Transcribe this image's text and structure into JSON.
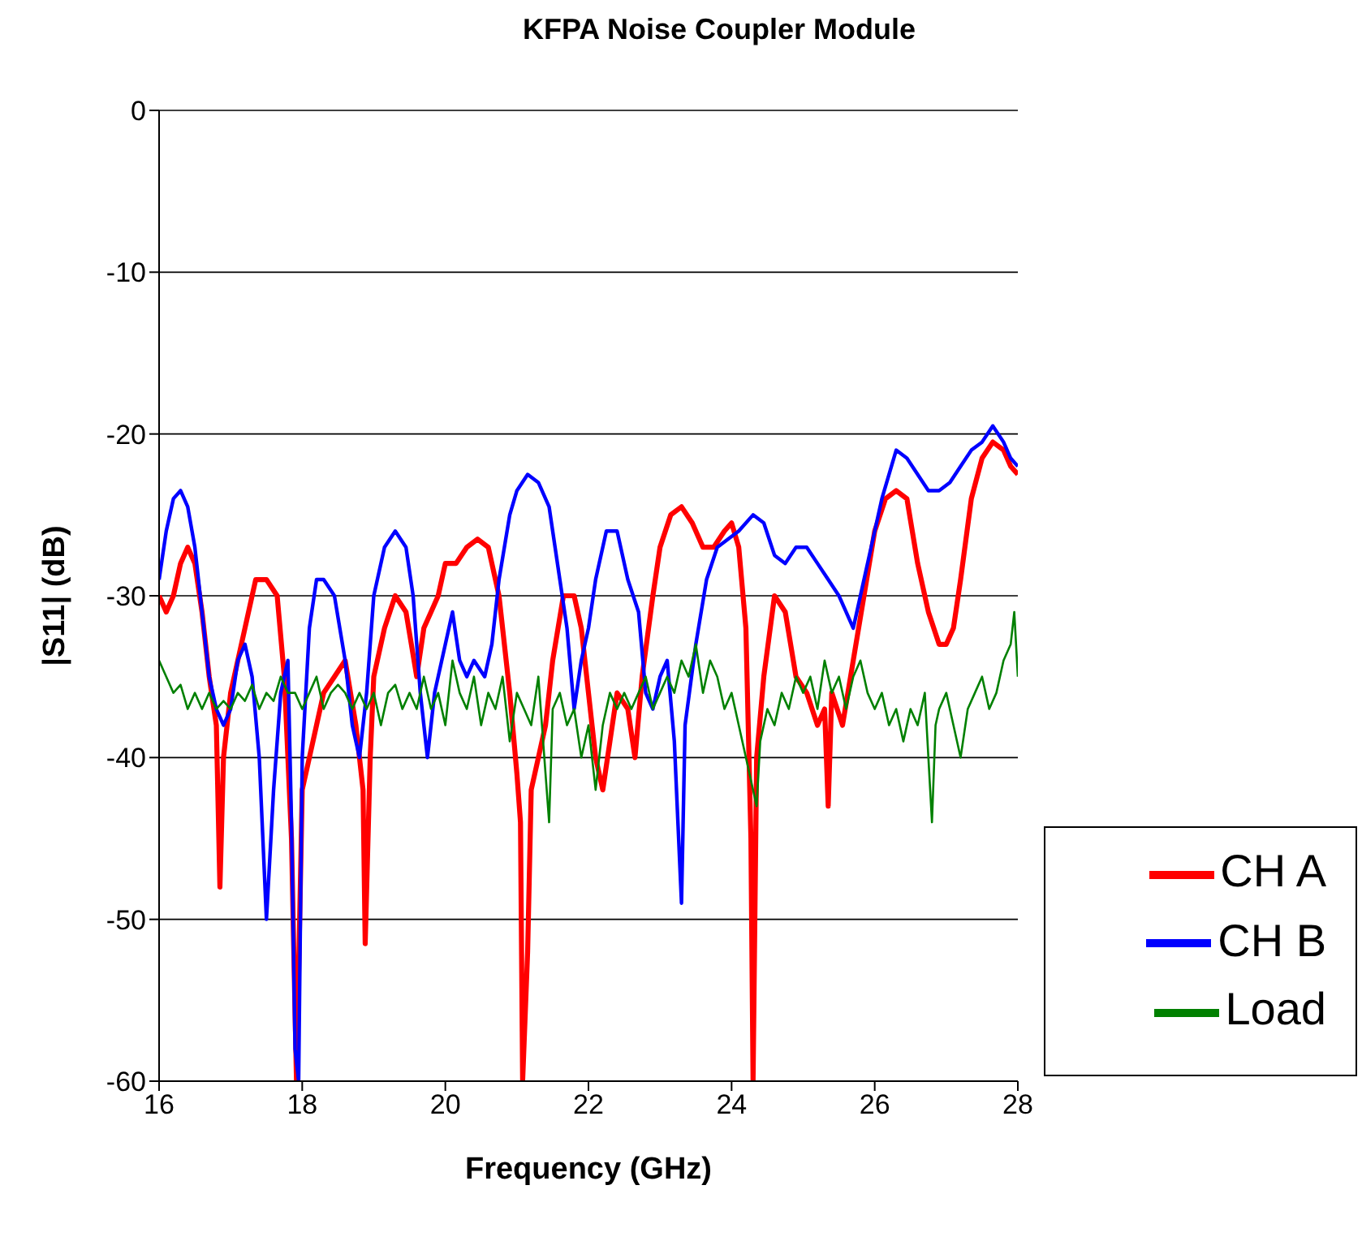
{
  "chart_data": {
    "type": "line",
    "title": "KFPA Noise Coupler Module",
    "xlabel": "Frequency (GHz)",
    "ylabel": "|S11| (dB)",
    "xlim": [
      16,
      28
    ],
    "xticks": [
      16,
      18,
      20,
      22,
      24,
      26,
      28
    ],
    "ylim": [
      -60,
      0
    ],
    "yticks": [
      -60,
      -50,
      -40,
      -30,
      -20,
      -10,
      0
    ],
    "grid": "y",
    "legend": "bottom right",
    "marker": "none",
    "line_style": "solid",
    "series": [
      {
        "name": "CH A",
        "color": "#ff0000",
        "x": [
          16.0,
          16.1,
          16.2,
          16.3,
          16.4,
          16.5,
          16.6,
          16.7,
          16.8,
          16.85,
          16.9,
          17.0,
          17.2,
          17.35,
          17.5,
          17.65,
          17.75,
          17.85,
          17.92,
          18.0,
          18.1,
          18.2,
          18.3,
          18.45,
          18.6,
          18.75,
          18.85,
          18.88,
          18.95,
          19.0,
          19.15,
          19.3,
          19.45,
          19.6,
          19.7,
          19.8,
          19.9,
          20.0,
          20.15,
          20.3,
          20.45,
          20.6,
          20.75,
          20.9,
          21.0,
          21.05,
          21.08,
          21.15,
          21.2,
          21.3,
          21.4,
          21.5,
          21.65,
          21.8,
          21.9,
          22.0,
          22.1,
          22.2,
          22.3,
          22.4,
          22.55,
          22.65,
          22.75,
          22.9,
          23.0,
          23.15,
          23.3,
          23.45,
          23.6,
          23.75,
          23.9,
          24.0,
          24.1,
          24.2,
          24.27,
          24.3,
          24.35,
          24.45,
          24.6,
          24.75,
          24.9,
          25.05,
          25.2,
          25.3,
          25.35,
          25.4,
          25.55,
          25.7,
          25.85,
          26.0,
          26.15,
          26.3,
          26.45,
          26.6,
          26.75,
          26.9,
          27.0,
          27.1,
          27.2,
          27.35,
          27.5,
          27.65,
          27.8,
          27.9,
          28.0
        ],
        "values": [
          -30,
          -31,
          -30,
          -28,
          -27,
          -28,
          -31,
          -35,
          -38,
          -48,
          -40,
          -36,
          -32,
          -29,
          -29,
          -30,
          -35,
          -45,
          -60,
          -42,
          -40,
          -38,
          -36,
          -35,
          -34,
          -38,
          -42,
          -51.5,
          -40,
          -35,
          -32,
          -30,
          -31,
          -35,
          -32,
          -31,
          -30,
          -28,
          -28,
          -27,
          -26.5,
          -27,
          -30,
          -36,
          -41,
          -44,
          -60,
          -52,
          -42,
          -40,
          -38,
          -34,
          -30,
          -30,
          -32,
          -36,
          -40,
          -42,
          -39,
          -36,
          -37,
          -40,
          -35,
          -30,
          -27,
          -25,
          -24.5,
          -25.5,
          -27,
          -27,
          -26,
          -25.5,
          -27,
          -32,
          -45,
          -60,
          -40,
          -35,
          -30,
          -31,
          -35,
          -36,
          -38,
          -37,
          -43,
          -36,
          -38,
          -34,
          -30,
          -26,
          -24,
          -23.5,
          -24,
          -28,
          -31,
          -33,
          -33,
          -32,
          -29,
          -24,
          -21.5,
          -20.5,
          -21,
          -22,
          -22.5
        ]
      },
      {
        "name": "CH B",
        "color": "#0000ff",
        "x": [
          16.0,
          16.1,
          16.2,
          16.3,
          16.4,
          16.5,
          16.6,
          16.7,
          16.8,
          16.9,
          17.0,
          17.1,
          17.2,
          17.3,
          17.4,
          17.45,
          17.5,
          17.6,
          17.7,
          17.8,
          17.85,
          17.9,
          17.95,
          18.0,
          18.1,
          18.2,
          18.3,
          18.45,
          18.6,
          18.7,
          18.8,
          18.9,
          19.0,
          19.15,
          19.3,
          19.45,
          19.55,
          19.65,
          19.75,
          19.85,
          20.0,
          20.1,
          20.2,
          20.3,
          20.4,
          20.55,
          20.65,
          20.75,
          20.9,
          21.0,
          21.15,
          21.3,
          21.45,
          21.6,
          21.7,
          21.8,
          21.9,
          22.0,
          22.1,
          22.25,
          22.4,
          22.55,
          22.7,
          22.8,
          22.9,
          23.0,
          23.1,
          23.2,
          23.3,
          23.35,
          23.5,
          23.65,
          23.8,
          23.95,
          24.1,
          24.3,
          24.45,
          24.6,
          24.75,
          24.9,
          25.05,
          25.2,
          25.35,
          25.5,
          25.6,
          25.7,
          25.8,
          25.95,
          26.1,
          26.3,
          26.45,
          26.6,
          26.75,
          26.9,
          27.05,
          27.2,
          27.35,
          27.5,
          27.65,
          27.8,
          27.9,
          28.0
        ],
        "values": [
          -29,
          -26,
          -24,
          -23.5,
          -24.5,
          -27,
          -31,
          -35,
          -37,
          -38,
          -37,
          -34,
          -33,
          -35,
          -40,
          -45,
          -50,
          -42,
          -36,
          -34,
          -44,
          -58,
          -60,
          -40,
          -32,
          -29,
          -29,
          -30,
          -34,
          -38,
          -40,
          -36,
          -30,
          -27,
          -26,
          -27,
          -30,
          -36,
          -40,
          -36,
          -33,
          -31,
          -34,
          -35,
          -34,
          -35,
          -33,
          -29,
          -25,
          -23.5,
          -22.5,
          -23,
          -24.5,
          -29,
          -32,
          -37,
          -34,
          -32,
          -29,
          -26,
          -26,
          -29,
          -31,
          -36,
          -37,
          -35,
          -34,
          -39,
          -49,
          -38,
          -33,
          -29,
          -27,
          -26.5,
          -26,
          -25,
          -25.5,
          -27.5,
          -28,
          -27,
          -27,
          -28,
          -29,
          -30,
          -31,
          -32,
          -30,
          -27,
          -24,
          -21,
          -21.5,
          -22.5,
          -23.5,
          -23.5,
          -23,
          -22,
          -21,
          -20.5,
          -19.5,
          -20.5,
          -21.5,
          -22
        ]
      },
      {
        "name": "Load",
        "color": "#008000",
        "x": [
          16.0,
          16.1,
          16.2,
          16.3,
          16.4,
          16.5,
          16.6,
          16.7,
          16.8,
          16.9,
          17.0,
          17.1,
          17.2,
          17.3,
          17.4,
          17.5,
          17.6,
          17.7,
          17.8,
          17.9,
          18.0,
          18.1,
          18.2,
          18.3,
          18.4,
          18.5,
          18.6,
          18.7,
          18.8,
          18.9,
          19.0,
          19.1,
          19.2,
          19.3,
          19.4,
          19.5,
          19.6,
          19.7,
          19.8,
          19.9,
          20.0,
          20.1,
          20.2,
          20.3,
          20.4,
          20.5,
          20.6,
          20.7,
          20.8,
          20.9,
          21.0,
          21.1,
          21.2,
          21.3,
          21.4,
          21.45,
          21.5,
          21.6,
          21.7,
          21.8,
          21.9,
          22.0,
          22.1,
          22.2,
          22.3,
          22.4,
          22.5,
          22.6,
          22.7,
          22.8,
          22.9,
          23.0,
          23.1,
          23.2,
          23.3,
          23.4,
          23.5,
          23.6,
          23.7,
          23.8,
          23.9,
          24.0,
          24.1,
          24.2,
          24.3,
          24.35,
          24.4,
          24.5,
          24.6,
          24.7,
          24.8,
          24.9,
          25.0,
          25.1,
          25.2,
          25.3,
          25.4,
          25.5,
          25.6,
          25.7,
          25.8,
          25.9,
          26.0,
          26.1,
          26.2,
          26.3,
          26.4,
          26.5,
          26.6,
          26.7,
          26.8,
          26.85,
          26.9,
          27.0,
          27.1,
          27.2,
          27.3,
          27.4,
          27.5,
          27.6,
          27.7,
          27.8,
          27.9,
          27.95,
          28.0
        ],
        "values": [
          -34,
          -35,
          -36,
          -35.5,
          -37,
          -36,
          -37,
          -36,
          -37,
          -36.5,
          -37,
          -36,
          -36.5,
          -35.5,
          -37,
          -36,
          -36.5,
          -35,
          -36,
          -36,
          -37,
          -36,
          -35,
          -37,
          -36,
          -35.5,
          -36,
          -37,
          -36,
          -37,
          -36,
          -38,
          -36,
          -35.5,
          -37,
          -36,
          -37,
          -35,
          -37,
          -36,
          -38,
          -34,
          -36,
          -37,
          -35,
          -38,
          -36,
          -37,
          -35,
          -39,
          -36,
          -37,
          -38,
          -35,
          -41,
          -44,
          -37,
          -36,
          -38,
          -37,
          -40,
          -38,
          -42,
          -38,
          -36,
          -37,
          -36,
          -37,
          -36,
          -35,
          -37,
          -36,
          -35,
          -36,
          -34,
          -35,
          -33,
          -36,
          -34,
          -35,
          -37,
          -36,
          -38,
          -40,
          -42,
          -43,
          -39,
          -37,
          -38,
          -36,
          -37,
          -35,
          -36,
          -35,
          -37,
          -34,
          -36,
          -35,
          -37,
          -35,
          -34,
          -36,
          -37,
          -36,
          -38,
          -37,
          -39,
          -37,
          -38,
          -36,
          -44,
          -38,
          -37,
          -36,
          -38,
          -40,
          -37,
          -36,
          -35,
          -37,
          -36,
          -34,
          -33,
          -31,
          -35
        ]
      }
    ]
  }
}
